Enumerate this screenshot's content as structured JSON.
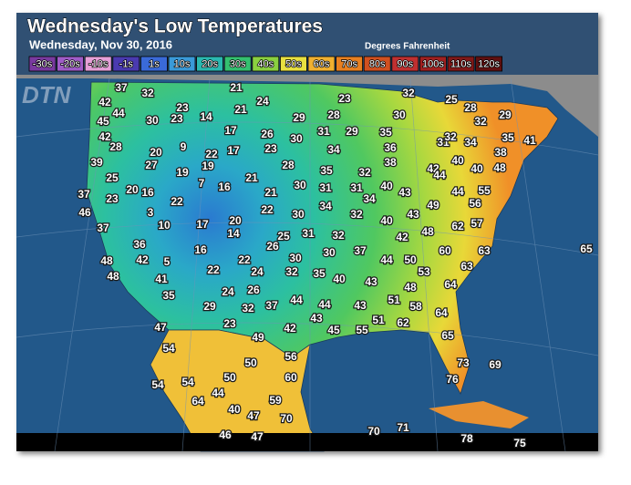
{
  "header": {
    "title": "Wednesday's Low Temperatures",
    "subtitle": "Wednesday, Nov 30, 2016",
    "units": "Degrees Fahrenheit",
    "logo": "DTN"
  },
  "legend": [
    {
      "label": "-30s",
      "color": "#7a3aa0"
    },
    {
      "label": "-20s",
      "color": "#a05cc8"
    },
    {
      "label": "-10s",
      "color": "#e6a0d8"
    },
    {
      "label": "-1s",
      "color": "#4a3ab0"
    },
    {
      "label": "1s",
      "color": "#3a6ad8"
    },
    {
      "label": "10s",
      "color": "#3a9ad8"
    },
    {
      "label": "20s",
      "color": "#2ab8b0"
    },
    {
      "label": "30s",
      "color": "#34c070"
    },
    {
      "label": "40s",
      "color": "#8ad040"
    },
    {
      "label": "50s",
      "color": "#e8e040"
    },
    {
      "label": "60s",
      "color": "#f0b030"
    },
    {
      "label": "70s",
      "color": "#e88020"
    },
    {
      "label": "80s",
      "color": "#d05020"
    },
    {
      "label": "90s",
      "color": "#c03030"
    },
    {
      "label": "100s",
      "color": "#a02020"
    },
    {
      "label": "110s",
      "color": "#801818"
    },
    {
      "label": "120s",
      "color": "#601010"
    }
  ],
  "temperatures": [
    37,
    32,
    42,
    44,
    45,
    30,
    23,
    23,
    14,
    21,
    24,
    21,
    23,
    32,
    25,
    28,
    29,
    32,
    29,
    28,
    30,
    42,
    28,
    20,
    9,
    17,
    26,
    30,
    31,
    29,
    35,
    22,
    17,
    23,
    34,
    36,
    31,
    32,
    34,
    35,
    41,
    39,
    27,
    19,
    28,
    38,
    40,
    38,
    48,
    40,
    42,
    44,
    35,
    32,
    25,
    19,
    21,
    30,
    31,
    31,
    40,
    43,
    44,
    55,
    37,
    23,
    20,
    16,
    7,
    16,
    21,
    34,
    56,
    46,
    3,
    22,
    22,
    30,
    34,
    32,
    43,
    49,
    37,
    10,
    17,
    20,
    14,
    25,
    31,
    32,
    40,
    62,
    57,
    42,
    48,
    36,
    16,
    26,
    30,
    37,
    60,
    63,
    65,
    48,
    42,
    5,
    22,
    30,
    44,
    50,
    48,
    41,
    22,
    24,
    32,
    35,
    40,
    53,
    63,
    35,
    24,
    26,
    43,
    48,
    64,
    29,
    32,
    37,
    44,
    44,
    43,
    51,
    58,
    23,
    42,
    43,
    45,
    55,
    51,
    62,
    64,
    47,
    49,
    65,
    54,
    56,
    50,
    73,
    69,
    54,
    54,
    50,
    60,
    76,
    64,
    44,
    59,
    40,
    47,
    70,
    70,
    71,
    46,
    47,
    78,
    75
  ]
}
